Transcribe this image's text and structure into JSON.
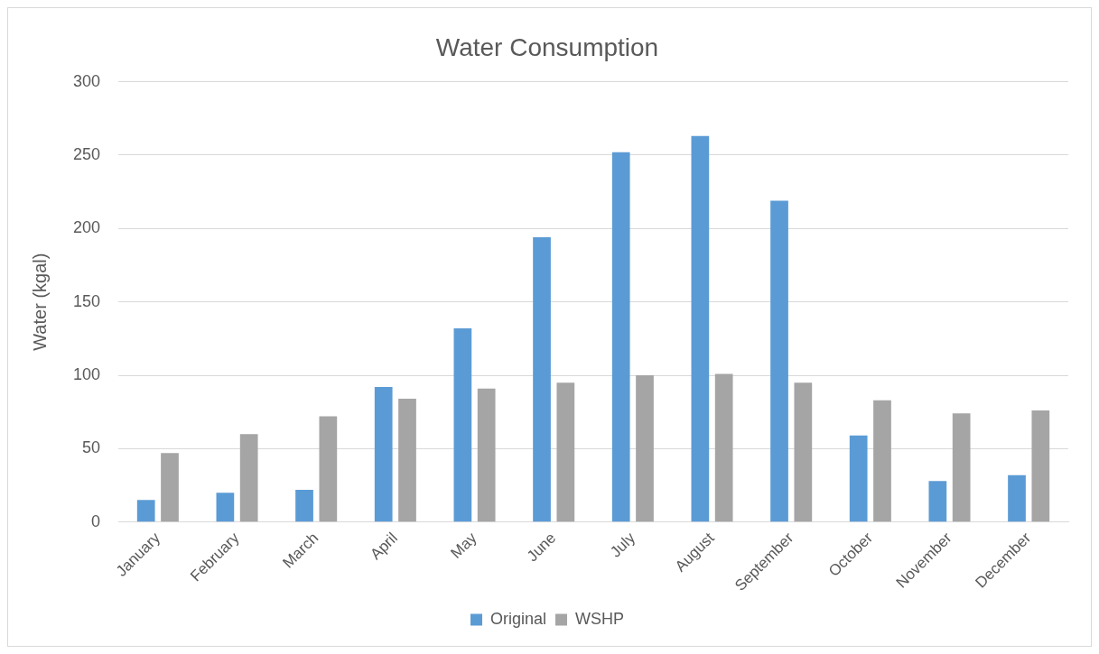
{
  "chart_data": {
    "type": "bar",
    "title": "Water Consumption",
    "ylabel": "Water (kgal)",
    "categories": [
      "January",
      "February",
      "March",
      "April",
      "May",
      "June",
      "July",
      "August",
      "September",
      "October",
      "November",
      "December"
    ],
    "series": [
      {
        "name": "Original",
        "color": "#5b9bd5",
        "values": [
          15,
          20,
          22,
          92,
          132,
          194,
          252,
          263,
          219,
          59,
          28,
          32
        ]
      },
      {
        "name": "WSHP",
        "color": "#a5a5a5",
        "values": [
          47,
          60,
          72,
          84,
          91,
          95,
          100,
          101,
          95,
          83,
          74,
          76
        ]
      }
    ],
    "ylim": [
      0,
      300
    ],
    "yticks": [
      0,
      50,
      100,
      150,
      200,
      250,
      300
    ],
    "grid": "y",
    "legend": "bottom"
  }
}
